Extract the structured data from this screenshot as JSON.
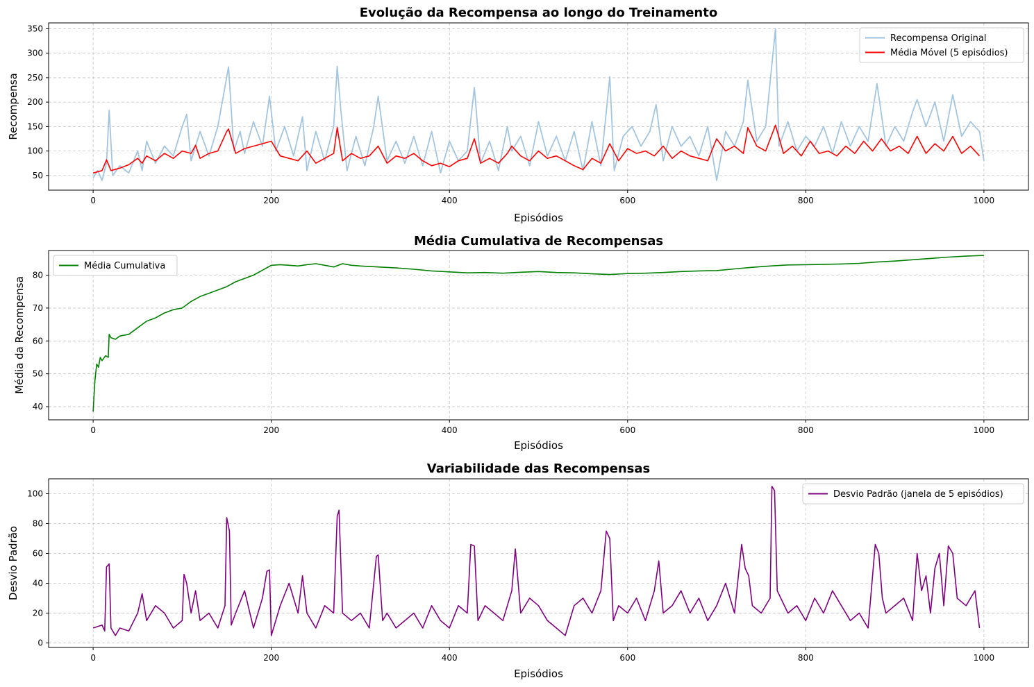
{
  "chart_data": [
    {
      "type": "line",
      "title": "Evolução da Recompensa ao longo do Treinamento",
      "xlabel": "Episódios",
      "ylabel": "Recompensa",
      "xlim": [
        -50,
        1050
      ],
      "ylim": [
        20,
        362
      ],
      "xticks": [
        0,
        200,
        400,
        600,
        800,
        1000
      ],
      "yticks": [
        50,
        100,
        150,
        200,
        250,
        300,
        350
      ],
      "grid": true,
      "legend_position": "top-right",
      "series": [
        {
          "name": "Recompensa Original",
          "color": "#9ec2de",
          "x": [
            0,
            5,
            10,
            15,
            18,
            22,
            30,
            40,
            50,
            55,
            60,
            70,
            80,
            90,
            100,
            105,
            110,
            120,
            130,
            140,
            152,
            158,
            165,
            170,
            180,
            190,
            198,
            205,
            215,
            225,
            235,
            240,
            250,
            260,
            270,
            274,
            278,
            285,
            295,
            305,
            315,
            320,
            330,
            340,
            350,
            360,
            370,
            380,
            390,
            400,
            410,
            420,
            428,
            435,
            445,
            455,
            465,
            470,
            480,
            490,
            500,
            510,
            520,
            530,
            540,
            550,
            560,
            570,
            580,
            585,
            595,
            605,
            615,
            625,
            632,
            640,
            650,
            660,
            670,
            680,
            690,
            700,
            710,
            720,
            730,
            735,
            745,
            755,
            766,
            770,
            780,
            790,
            800,
            810,
            820,
            830,
            840,
            850,
            860,
            870,
            880,
            890,
            900,
            910,
            920,
            925,
            935,
            945,
            955,
            965,
            975,
            985,
            995,
            1000
          ],
          "values": [
            45,
            60,
            40,
            75,
            183,
            50,
            70,
            55,
            100,
            60,
            120,
            75,
            110,
            90,
            150,
            175,
            80,
            140,
            90,
            150,
            272,
            100,
            140,
            95,
            160,
            110,
            212,
            100,
            150,
            90,
            170,
            60,
            140,
            80,
            150,
            273,
            185,
            60,
            130,
            70,
            150,
            212,
            80,
            120,
            75,
            130,
            70,
            140,
            55,
            120,
            80,
            100,
            230,
            75,
            120,
            60,
            150,
            100,
            130,
            70,
            160,
            90,
            130,
            80,
            140,
            60,
            160,
            70,
            252,
            60,
            130,
            150,
            110,
            140,
            195,
            80,
            150,
            110,
            130,
            90,
            150,
            40,
            140,
            110,
            160,
            245,
            120,
            150,
            350,
            110,
            160,
            100,
            130,
            110,
            150,
            95,
            160,
            110,
            150,
            120,
            238,
            110,
            150,
            120,
            180,
            205,
            150,
            200,
            120,
            215,
            130,
            160,
            140,
            80
          ]
        },
        {
          "name": "Média Móvel (5 episódios)",
          "color": "#ff0000",
          "x": [
            0,
            10,
            15,
            20,
            30,
            40,
            50,
            55,
            60,
            70,
            80,
            90,
            100,
            110,
            115,
            120,
            130,
            140,
            150,
            152,
            160,
            170,
            180,
            190,
            200,
            210,
            220,
            230,
            240,
            250,
            260,
            270,
            274,
            280,
            290,
            300,
            310,
            320,
            330,
            340,
            350,
            360,
            370,
            380,
            390,
            400,
            410,
            420,
            428,
            435,
            445,
            455,
            465,
            470,
            480,
            490,
            500,
            510,
            520,
            530,
            540,
            550,
            560,
            570,
            580,
            590,
            600,
            610,
            620,
            630,
            640,
            650,
            660,
            670,
            680,
            690,
            700,
            710,
            720,
            730,
            735,
            745,
            755,
            766,
            775,
            785,
            795,
            805,
            815,
            825,
            835,
            845,
            855,
            865,
            875,
            885,
            895,
            905,
            915,
            925,
            935,
            945,
            955,
            965,
            975,
            985,
            995
          ],
          "values": [
            55,
            60,
            82,
            60,
            65,
            72,
            85,
            75,
            90,
            80,
            95,
            85,
            100,
            95,
            112,
            85,
            95,
            100,
            140,
            145,
            95,
            105,
            110,
            115,
            120,
            90,
            85,
            80,
            100,
            75,
            85,
            95,
            148,
            80,
            95,
            85,
            90,
            110,
            75,
            90,
            85,
            95,
            80,
            70,
            75,
            68,
            80,
            85,
            125,
            75,
            85,
            75,
            95,
            110,
            90,
            80,
            100,
            85,
            90,
            80,
            70,
            62,
            85,
            75,
            115,
            80,
            105,
            95,
            100,
            90,
            110,
            85,
            100,
            90,
            85,
            80,
            125,
            100,
            110,
            95,
            148,
            110,
            100,
            153,
            95,
            110,
            90,
            120,
            95,
            100,
            90,
            110,
            95,
            120,
            100,
            125,
            100,
            110,
            95,
            130,
            95,
            115,
            100,
            130,
            95,
            110,
            90
          ]
        }
      ]
    },
    {
      "type": "line",
      "title": "Média Cumulativa de Recompensas",
      "xlabel": "Episódios",
      "ylabel": "Média da Recompensa",
      "xlim": [
        -50,
        1050
      ],
      "ylim": [
        36,
        87.5
      ],
      "xticks": [
        0,
        200,
        400,
        600,
        800,
        1000
      ],
      "yticks": [
        40,
        50,
        60,
        70,
        80
      ],
      "grid": true,
      "legend_position": "top-left",
      "series": [
        {
          "name": "Média Cumulativa",
          "color": "#008000",
          "x": [
            0,
            2,
            4,
            6,
            8,
            10,
            14,
            17,
            18,
            20,
            25,
            30,
            40,
            50,
            60,
            70,
            80,
            90,
            100,
            110,
            120,
            130,
            140,
            150,
            160,
            170,
            180,
            190,
            200,
            210,
            220,
            230,
            240,
            250,
            260,
            270,
            280,
            290,
            300,
            320,
            340,
            360,
            380,
            400,
            420,
            440,
            460,
            480,
            500,
            520,
            540,
            560,
            580,
            600,
            620,
            640,
            660,
            680,
            700,
            720,
            740,
            760,
            780,
            800,
            820,
            840,
            860,
            880,
            900,
            920,
            940,
            960,
            980,
            1000
          ],
          "values": [
            38.5,
            48,
            53,
            52,
            55,
            54,
            55.5,
            55,
            62,
            61,
            60.5,
            61.5,
            62,
            64,
            66,
            67,
            68.5,
            69.5,
            70,
            72,
            73.5,
            74.5,
            75.5,
            76.5,
            78,
            79,
            80,
            81.5,
            83,
            83.2,
            83,
            82.8,
            83.2,
            83.5,
            83,
            82.5,
            83.5,
            83,
            82.8,
            82.5,
            82.2,
            81.8,
            81.3,
            81,
            80.7,
            80.8,
            80.6,
            80.9,
            81.1,
            80.8,
            80.7,
            80.4,
            80.2,
            80.5,
            80.6,
            80.8,
            81.1,
            81.3,
            81.4,
            81.9,
            82.4,
            82.8,
            83.1,
            83.2,
            83.3,
            83.4,
            83.6,
            84,
            84.3,
            84.7,
            85.1,
            85.5,
            85.8,
            86
          ]
        }
      ]
    },
    {
      "type": "line",
      "title": "Variabilidade das Recompensas",
      "xlabel": "Episódios",
      "ylabel": "Desvio Padrão",
      "xlim": [
        -50,
        1050
      ],
      "ylim": [
        -3,
        110
      ],
      "xticks": [
        0,
        200,
        400,
        600,
        800,
        1000
      ],
      "yticks": [
        0,
        20,
        40,
        60,
        80,
        100
      ],
      "grid": true,
      "legend_position": "top-right",
      "series": [
        {
          "name": "Desvio Padrão (janela de 5 episódios)",
          "color": "#800080",
          "x": [
            0,
            5,
            10,
            13,
            15,
            18,
            20,
            25,
            30,
            40,
            50,
            55,
            60,
            70,
            80,
            90,
            100,
            102,
            105,
            110,
            115,
            120,
            130,
            140,
            148,
            150,
            153,
            155,
            160,
            170,
            180,
            190,
            195,
            198,
            200,
            210,
            220,
            230,
            235,
            240,
            250,
            260,
            270,
            274,
            276,
            280,
            290,
            300,
            310,
            318,
            320,
            325,
            330,
            340,
            350,
            360,
            370,
            380,
            390,
            400,
            410,
            420,
            424,
            428,
            432,
            440,
            450,
            460,
            470,
            474,
            480,
            490,
            500,
            510,
            520,
            530,
            540,
            550,
            560,
            570,
            576,
            580,
            584,
            590,
            600,
            610,
            620,
            630,
            635,
            640,
            650,
            660,
            670,
            680,
            690,
            700,
            710,
            720,
            728,
            732,
            736,
            740,
            750,
            760,
            762,
            765,
            768,
            772,
            780,
            790,
            800,
            810,
            820,
            830,
            840,
            850,
            860,
            870,
            878,
            882,
            886,
            890,
            900,
            910,
            920,
            925,
            930,
            935,
            940,
            945,
            950,
            955,
            960,
            965,
            970,
            980,
            990,
            995
          ],
          "values": [
            10,
            11,
            12,
            8,
            51,
            53,
            10,
            5,
            10,
            8,
            20,
            33,
            15,
            25,
            20,
            10,
            15,
            46,
            40,
            20,
            35,
            15,
            20,
            10,
            25,
            84,
            75,
            12,
            20,
            35,
            10,
            30,
            48,
            49,
            5,
            25,
            40,
            20,
            45,
            20,
            10,
            25,
            20,
            85,
            89,
            20,
            15,
            20,
            10,
            58,
            59,
            15,
            20,
            10,
            15,
            20,
            10,
            25,
            15,
            10,
            25,
            20,
            66,
            65,
            15,
            25,
            20,
            15,
            35,
            63,
            20,
            30,
            25,
            15,
            10,
            5,
            25,
            30,
            20,
            35,
            75,
            70,
            15,
            25,
            20,
            30,
            15,
            35,
            55,
            20,
            25,
            35,
            20,
            30,
            15,
            25,
            40,
            20,
            66,
            50,
            45,
            25,
            20,
            30,
            105,
            102,
            35,
            30,
            20,
            25,
            15,
            30,
            20,
            35,
            25,
            15,
            20,
            10,
            66,
            60,
            30,
            20,
            25,
            30,
            15,
            60,
            35,
            45,
            20,
            50,
            60,
            25,
            65,
            60,
            30,
            25,
            35,
            10
          ]
        }
      ]
    }
  ]
}
